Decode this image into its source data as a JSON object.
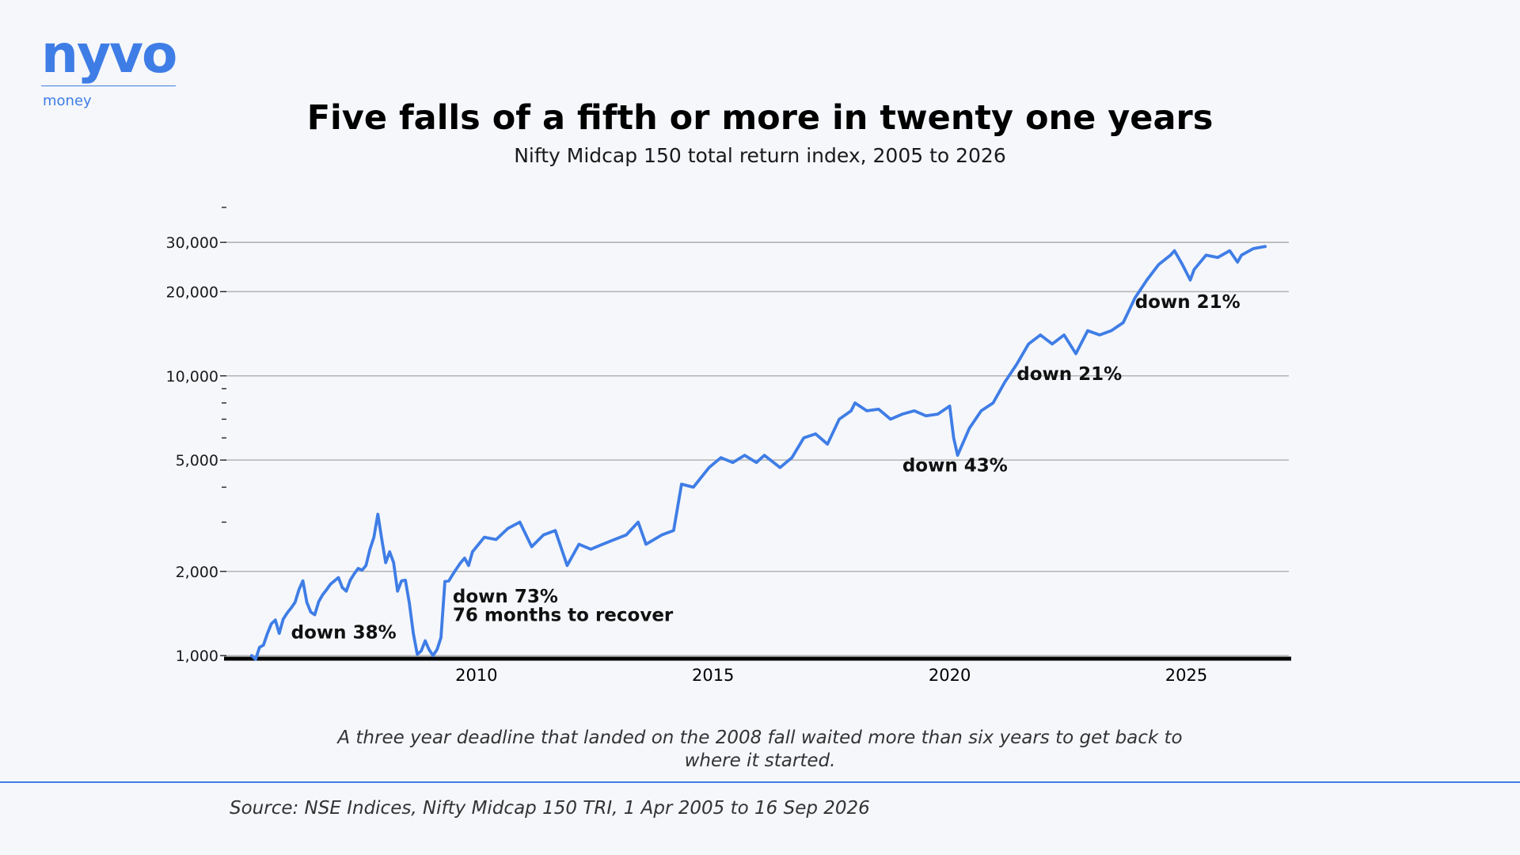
{
  "brand": {
    "name": "nyvo",
    "tagline": "money",
    "color": "#3f7de6"
  },
  "chart_data": {
    "type": "line",
    "title": "Five falls of a fifth or more in twenty one years",
    "subtitle": "Nifty Midcap 150 total return index, 2005 to 2026",
    "xlabel": "",
    "ylabel": "",
    "y_scale": "log",
    "ylim": [
      950,
      40000
    ],
    "xlim": [
      "2004-09",
      "2027-03"
    ],
    "x_ticks": [
      "2010",
      "2015",
      "2020",
      "2025"
    ],
    "y_ticks": [
      "1,000",
      "2,000",
      "5,000",
      "10,000",
      "20,000",
      "30,000"
    ],
    "y_tick_values": [
      1000,
      2000,
      5000,
      10000,
      20000,
      30000
    ],
    "grid": true,
    "legend": "none",
    "line_color": "#3f7de6",
    "series": [
      {
        "x": [
          "2005-04",
          "2005-05",
          "2005-06",
          "2005-07",
          "2005-08",
          "2005-09",
          "2005-10",
          "2005-11",
          "2005-12",
          "2006-01",
          "2006-02",
          "2006-03",
          "2006-04",
          "2006-05",
          "2006-06",
          "2006-07",
          "2006-08",
          "2006-09",
          "2006-10",
          "2006-11",
          "2006-12",
          "2007-01",
          "2007-02",
          "2007-03",
          "2007-04",
          "2007-05",
          "2007-06",
          "2007-07",
          "2007-08",
          "2007-09",
          "2007-10",
          "2007-11",
          "2007-12",
          "2008-01",
          "2008-02",
          "2008-03",
          "2008-04",
          "2008-05",
          "2008-06",
          "2008-07",
          "2008-08",
          "2008-09",
          "2008-10",
          "2008-11",
          "2008-12",
          "2009-01",
          "2009-02",
          "2009-03",
          "2009-04",
          "2009-05",
          "2009-06",
          "2009-07",
          "2009-08",
          "2009-09",
          "2009-10",
          "2009-11",
          "2009-12",
          "2010-03",
          "2010-06",
          "2010-09",
          "2010-12",
          "2011-03",
          "2011-06",
          "2011-09",
          "2011-12",
          "2012-03",
          "2012-06",
          "2012-09",
          "2012-12",
          "2013-03",
          "2013-06",
          "2013-08",
          "2013-12",
          "2014-03",
          "2014-05",
          "2014-08",
          "2014-12",
          "2015-03",
          "2015-06",
          "2015-09",
          "2015-12",
          "2016-02",
          "2016-06",
          "2016-09",
          "2016-12",
          "2017-03",
          "2017-06",
          "2017-09",
          "2017-12",
          "2018-01",
          "2018-04",
          "2018-07",
          "2018-10",
          "2019-01",
          "2019-04",
          "2019-07",
          "2019-10",
          "2020-01",
          "2020-02",
          "2020-03",
          "2020-06",
          "2020-09",
          "2020-12",
          "2021-03",
          "2021-06",
          "2021-09",
          "2021-12",
          "2022-03",
          "2022-06",
          "2022-09",
          "2022-12",
          "2023-03",
          "2023-06",
          "2023-09",
          "2023-12",
          "2024-03",
          "2024-06",
          "2024-09",
          "2024-10",
          "2024-12",
          "2025-02",
          "2025-03",
          "2025-06",
          "2025-09",
          "2025-12",
          "2026-02",
          "2026-03",
          "2026-06",
          "2026-09"
        ],
        "y": [
          1000,
          970,
          1070,
          1090,
          1200,
          1300,
          1340,
          1200,
          1350,
          1420,
          1480,
          1550,
          1720,
          1850,
          1550,
          1430,
          1400,
          1560,
          1650,
          1720,
          1800,
          1850,
          1900,
          1750,
          1700,
          1860,
          1960,
          2050,
          2020,
          2100,
          2400,
          2650,
          3200,
          2600,
          2150,
          2350,
          2150,
          1700,
          1850,
          1860,
          1540,
          1200,
          1010,
          1040,
          1130,
          1050,
          1000,
          1050,
          1160,
          1840,
          1850,
          1950,
          2050,
          2150,
          2230,
          2100,
          2350,
          2650,
          2600,
          2850,
          3000,
          2450,
          2700,
          2800,
          2100,
          2500,
          2400,
          2500,
          2600,
          2700,
          3000,
          2500,
          2700,
          2800,
          4100,
          4000,
          4700,
          5100,
          4900,
          5200,
          4900,
          5200,
          4700,
          5100,
          6000,
          6200,
          5700,
          7000,
          7500,
          8000,
          7500,
          7600,
          7000,
          7300,
          7500,
          7200,
          7300,
          7800,
          6000,
          5200,
          6500,
          7500,
          8000,
          9500,
          11000,
          13000,
          14000,
          13000,
          14000,
          12000,
          14500,
          14000,
          14500,
          15500,
          19000,
          22000,
          25000,
          27000,
          28000,
          25000,
          22000,
          24000,
          27000,
          26500,
          28000,
          25500,
          27000,
          28500,
          29000
        ]
      }
    ],
    "annotations": [
      {
        "text": "down 38%",
        "x": "2006-02",
        "y": 1150
      },
      {
        "text": "down 73%",
        "x": "2009-07",
        "y": 1550
      },
      {
        "text": "76 months to recover",
        "x": "2009-07",
        "y": 1330
      },
      {
        "text": "down 43%",
        "x": "2019-01",
        "y": 4550
      },
      {
        "text": "down 21%",
        "x": "2021-06",
        "y": 9650
      },
      {
        "text": "down 21%",
        "x": "2023-12",
        "y": 17500
      }
    ]
  },
  "note": "A three year deadline that landed on the 2008 fall waited more than six years to get back to where it started.",
  "source": "Source: NSE Indices, Nifty Midcap 150 TRI, 1 Apr 2005 to 16 Sep 2026"
}
